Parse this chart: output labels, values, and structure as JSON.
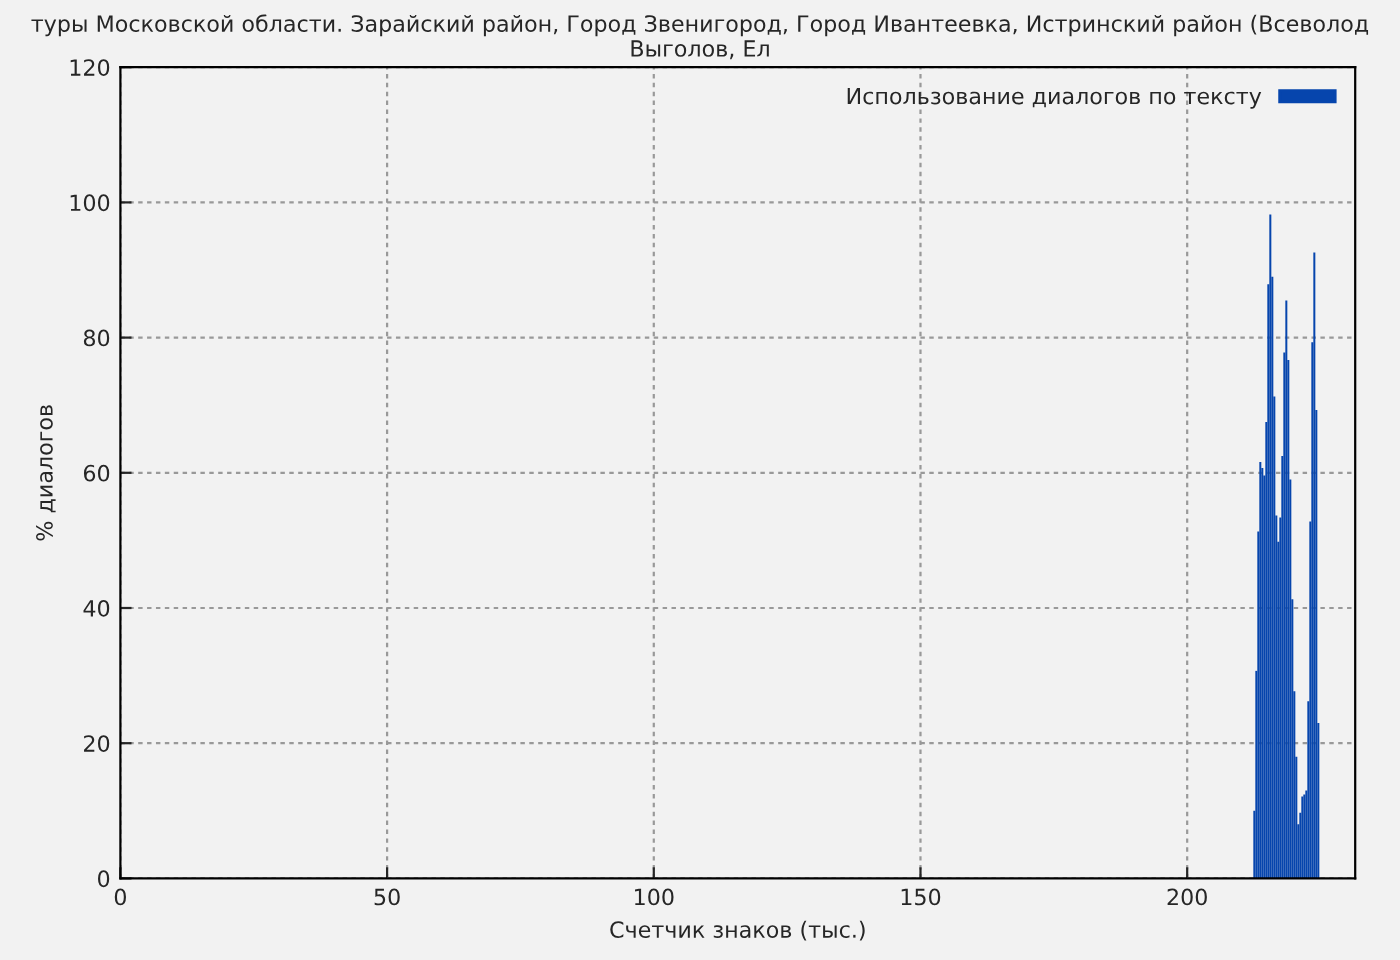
{
  "chart_data": {
    "type": "histogram",
    "title": "туры Московской области. Зарайский район, Город Звенигород, Город Ивантеевка, Истринский район (Всеволод Выголов, Ел",
    "xlabel": "Счетчик знаков (тыс.)",
    "ylabel": "% диалогов",
    "bins": [
      212.4,
      212.775,
      213.15,
      213.525,
      213.9,
      214.275,
      214.65,
      215.025,
      215.4,
      215.775,
      216.15,
      216.525,
      216.9,
      217.275,
      217.65,
      218.025,
      218.4,
      218.775,
      219.15,
      219.525,
      219.9,
      220.275,
      220.65,
      221.025,
      221.4,
      221.775,
      222.15,
      222.525,
      222.9,
      223.275,
      223.65,
      224.025,
      224.4,
      224.775
    ],
    "series": [
      {
        "name": "Использование диалогов по тексту",
        "color": "#0645ad",
        "values": [
          10.0,
          30.7,
          51.3,
          61.6,
          60.7,
          59.6,
          67.5,
          87.9,
          98.2,
          89.0,
          71.3,
          53.7,
          49.8,
          53.4,
          62.5,
          77.8,
          85.5,
          76.7,
          59.0,
          41.3,
          27.7,
          18.0,
          8.0,
          9.7,
          12.1,
          12.4,
          13.0,
          26.2,
          52.8,
          79.3,
          92.6,
          69.3,
          23.0
        ]
      }
    ],
    "xlim": [
      0,
      231.5
    ],
    "ylim": [
      0,
      120
    ],
    "xticks": [
      0,
      50,
      100,
      150,
      200
    ],
    "yticks": [
      0,
      20,
      40,
      60,
      80,
      100,
      120
    ],
    "grid": true,
    "legend": "top right"
  }
}
